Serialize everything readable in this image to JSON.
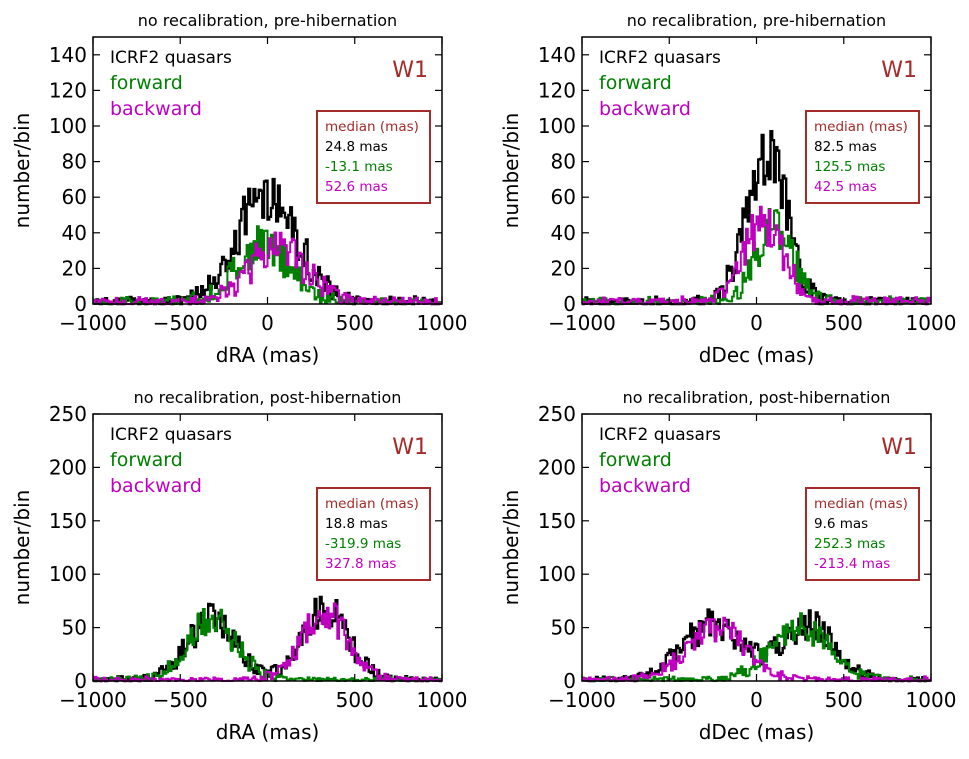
{
  "figure": {
    "colors": {
      "icrf": "#000000",
      "forward": "#008000",
      "backward": "#c000c0",
      "accent": "#a52a2a"
    }
  },
  "chart_data": [
    {
      "type": "histogram",
      "title": "no recalibration, pre-hibernation",
      "xlabel": "dRA (mas)",
      "ylabel": "number/bin",
      "xlim": [
        -1000,
        1000
      ],
      "ylim": [
        0,
        150
      ],
      "xticks": [
        -1000,
        -500,
        0,
        500,
        1000
      ],
      "xtick_labels": [
        "−1000",
        "−500",
        "0",
        "500",
        "1000"
      ],
      "yticks": [
        0,
        20,
        40,
        60,
        80,
        100,
        120,
        140
      ],
      "band": "W1",
      "legend": [
        "ICRF2 quasars",
        "forward",
        "backward"
      ],
      "median_box": {
        "title": "median (mas)",
        "values": [
          "24.8 mas",
          "-13.1 mas",
          "52.6 mas"
        ]
      },
      "series": [
        {
          "name": "ICRF2 quasars",
          "color": "#000000",
          "bins": [
            {
              "center": 0,
              "sigma": 170,
              "peak": 62
            }
          ]
        },
        {
          "name": "forward",
          "color": "#008000",
          "bins": [
            {
              "center": -20,
              "sigma": 160,
              "peak": 31
            }
          ]
        },
        {
          "name": "backward",
          "color": "#c000c0",
          "bins": [
            {
              "center": 60,
              "sigma": 160,
              "peak": 31
            }
          ]
        }
      ]
    },
    {
      "type": "histogram",
      "title": "no recalibration, pre-hibernation",
      "xlabel": "dDec (mas)",
      "ylabel": "number/bin",
      "xlim": [
        -1000,
        1000
      ],
      "ylim": [
        0,
        150
      ],
      "xticks": [
        -1000,
        -500,
        0,
        500,
        1000
      ],
      "xtick_labels": [
        "−1000",
        "−500",
        "0",
        "500",
        "1000"
      ],
      "yticks": [
        0,
        20,
        40,
        60,
        80,
        100,
        120,
        140
      ],
      "band": "W1",
      "legend": [
        "ICRF2 quasars",
        "forward",
        "backward"
      ],
      "median_box": {
        "title": "median (mas)",
        "values": [
          "82.5 mas",
          "125.5 mas",
          "42.5 mas"
        ]
      },
      "series": [
        {
          "name": "ICRF2 quasars",
          "color": "#000000",
          "bins": [
            {
              "center": 60,
              "sigma": 115,
              "peak": 82
            }
          ]
        },
        {
          "name": "forward",
          "color": "#008000",
          "bins": [
            {
              "center": 100,
              "sigma": 110,
              "peak": 42
            }
          ]
        },
        {
          "name": "backward",
          "color": "#c000c0",
          "bins": [
            {
              "center": 40,
              "sigma": 110,
              "peak": 46
            }
          ]
        }
      ]
    },
    {
      "type": "histogram",
      "title": "no recalibration, post-hibernation",
      "xlabel": "dRA (mas)",
      "ylabel": "number/bin",
      "xlim": [
        -1000,
        1000
      ],
      "ylim": [
        0,
        250
      ],
      "xticks": [
        -1000,
        -500,
        0,
        500,
        1000
      ],
      "xtick_labels": [
        "−1000",
        "−500",
        "0",
        "500",
        "1000"
      ],
      "yticks": [
        0,
        50,
        100,
        150,
        200,
        250
      ],
      "band": "W1",
      "legend": [
        "ICRF2 quasars",
        "forward",
        "backward"
      ],
      "median_box": {
        "title": "median (mas)",
        "values": [
          "18.8 mas",
          "-319.9 mas",
          "327.8 mas"
        ]
      },
      "series": [
        {
          "name": "ICRF2 quasars",
          "color": "#000000",
          "bins": [
            {
              "center": -320,
              "sigma": 140,
              "peak": 56
            },
            {
              "center": 330,
              "sigma": 135,
              "peak": 65
            }
          ]
        },
        {
          "name": "forward",
          "color": "#008000",
          "bins": [
            {
              "center": -320,
              "sigma": 140,
              "peak": 55
            }
          ]
        },
        {
          "name": "backward",
          "color": "#c000c0",
          "bins": [
            {
              "center": 330,
              "sigma": 135,
              "peak": 62
            }
          ]
        }
      ]
    },
    {
      "type": "histogram",
      "title": "no recalibration, post-hibernation",
      "xlabel": "dDec (mas)",
      "ylabel": "number/bin",
      "xlim": [
        -1000,
        1000
      ],
      "ylim": [
        0,
        250
      ],
      "xticks": [
        -1000,
        -500,
        0,
        500,
        1000
      ],
      "xtick_labels": [
        "−1000",
        "−500",
        "0",
        "500",
        "1000"
      ],
      "yticks": [
        0,
        50,
        100,
        150,
        200,
        250
      ],
      "band": "W1",
      "legend": [
        "ICRF2 quasars",
        "forward",
        "backward"
      ],
      "median_box": {
        "title": "median (mas)",
        "values": [
          "9.6 mas",
          "252.3 mas",
          "-213.4 mas"
        ]
      },
      "series": [
        {
          "name": "ICRF2 quasars",
          "color": "#000000",
          "bins": [
            {
              "center": -250,
              "sigma": 170,
              "peak": 52
            },
            {
              "center": 300,
              "sigma": 150,
              "peak": 52
            }
          ]
        },
        {
          "name": "forward",
          "color": "#008000",
          "bins": [
            {
              "center": 250,
              "sigma": 170,
              "peak": 50
            }
          ]
        },
        {
          "name": "backward",
          "color": "#c000c0",
          "bins": [
            {
              "center": -220,
              "sigma": 170,
              "peak": 49
            }
          ]
        }
      ]
    }
  ]
}
